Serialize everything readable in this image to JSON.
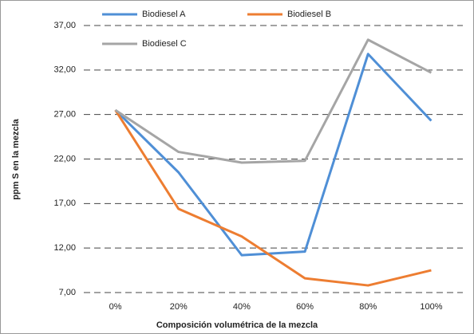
{
  "chart_data": {
    "type": "line",
    "x_label": "Composición volumétrica de la mezcla",
    "y_label": "ppm  S  en la mezcla",
    "categories": [
      "0%",
      "20%",
      "40%",
      "60%",
      "80%",
      "100%"
    ],
    "series": [
      {
        "name": "Biodiesel A",
        "color": "#4f8fd6",
        "values": [
          27.5,
          20.5,
          11.2,
          11.6,
          33.8,
          26.3
        ]
      },
      {
        "name": "Biodiesel B",
        "color": "#ed7d31",
        "values": [
          27.5,
          16.4,
          13.3,
          8.6,
          7.8,
          9.5
        ]
      },
      {
        "name": "Biodiesel C",
        "color": "#a5a5a5",
        "values": [
          27.5,
          22.8,
          21.6,
          21.8,
          35.4,
          31.7
        ]
      }
    ],
    "ylim": [
      7,
      37
    ],
    "yticks": [
      {
        "value": 7,
        "label": "7,00"
      },
      {
        "value": 12,
        "label": "12,00"
      },
      {
        "value": 17,
        "label": "17,00"
      },
      {
        "value": 22,
        "label": "22,00"
      },
      {
        "value": 27,
        "label": "27,00"
      },
      {
        "value": 32,
        "label": "32,00"
      },
      {
        "value": 37,
        "label": "37,00"
      }
    ],
    "grid": true
  }
}
